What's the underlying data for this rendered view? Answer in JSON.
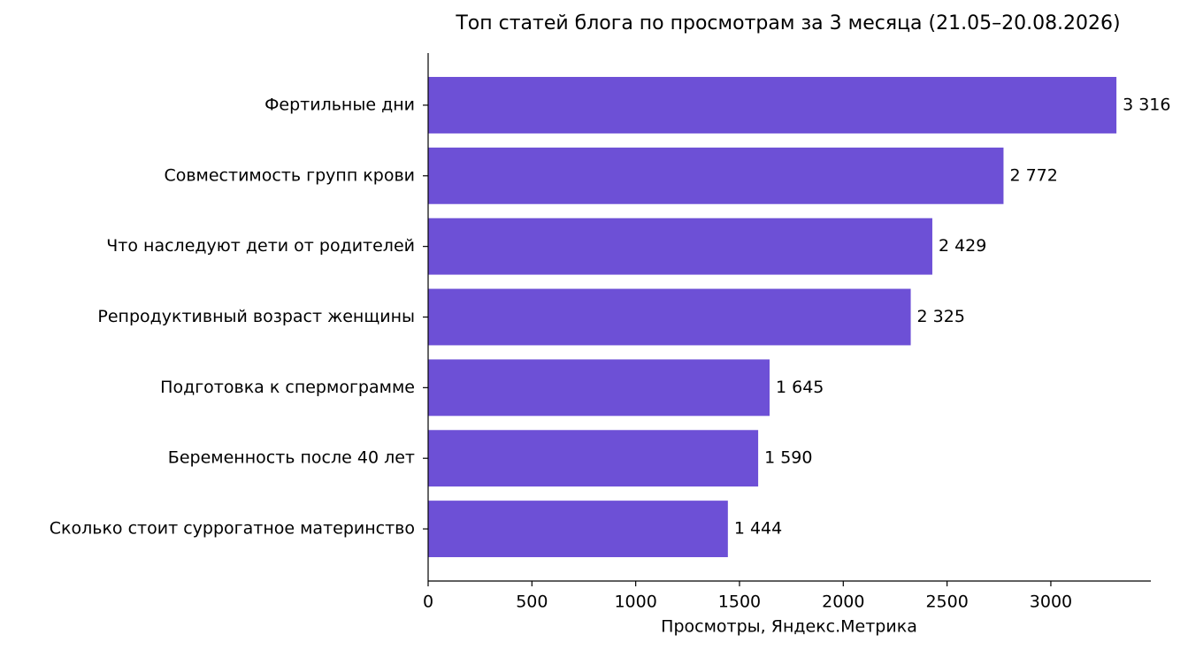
{
  "chart_data": {
    "type": "bar",
    "orientation": "horizontal",
    "title": "Топ статей блога по просмотрам за 3 месяца (21.05–20.08.2026)",
    "x_label": "Просмотры, Яндекс.Метрика",
    "categories": [
      "Фертильные дни",
      "Совместимость групп крови",
      "Что наследуют дети от родителей",
      "Репродуктивный возраст женщины",
      "Подготовка к спермограмме",
      "Беременность после 40 лет",
      "Сколько стоит суррогатное материнство"
    ],
    "values": [
      3316,
      2772,
      2429,
      2325,
      1645,
      1590,
      1444
    ],
    "value_labels": [
      "3 316",
      "2 772",
      "2 429",
      "2 325",
      "1 645",
      "1 590",
      "1 444"
    ],
    "color": "#6d50d6",
    "xlim": [
      0,
      3481.8
    ],
    "xticks": [
      0,
      500,
      1000,
      1500,
      2000,
      2500,
      3000
    ],
    "grid": false
  }
}
